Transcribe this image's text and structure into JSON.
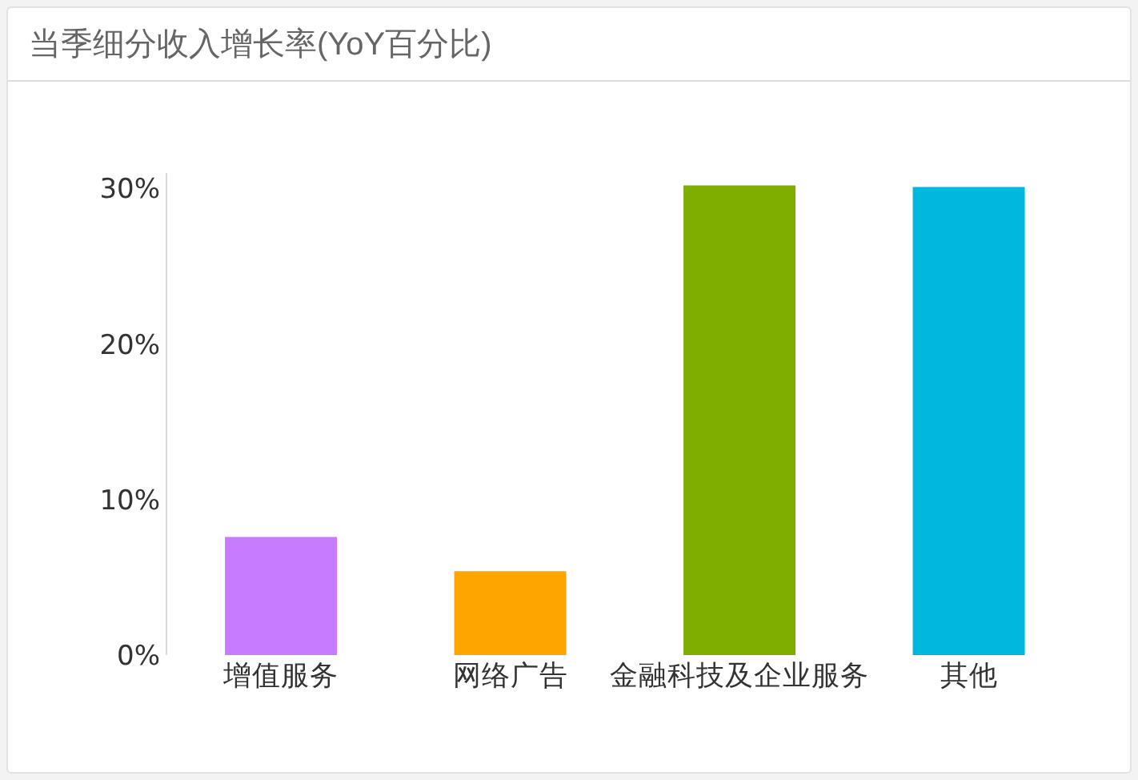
{
  "chart_data": {
    "type": "bar",
    "title": "当季细分收入增长率(YoY百分比)",
    "categories": [
      "增值服务",
      "网络广告",
      "金融科技及企业服务",
      "其他"
    ],
    "values": [
      7.6,
      5.4,
      30.2,
      30.1
    ],
    "colors": [
      "#c77cff",
      "#ffa500",
      "#7fae00",
      "#00b8de"
    ],
    "ylim": [
      0,
      31
    ],
    "yticks": [
      {
        "value": 0,
        "label": "0%"
      },
      {
        "value": 10,
        "label": "10%"
      },
      {
        "value": 20,
        "label": "20%"
      },
      {
        "value": 30,
        "label": "30%"
      }
    ]
  }
}
